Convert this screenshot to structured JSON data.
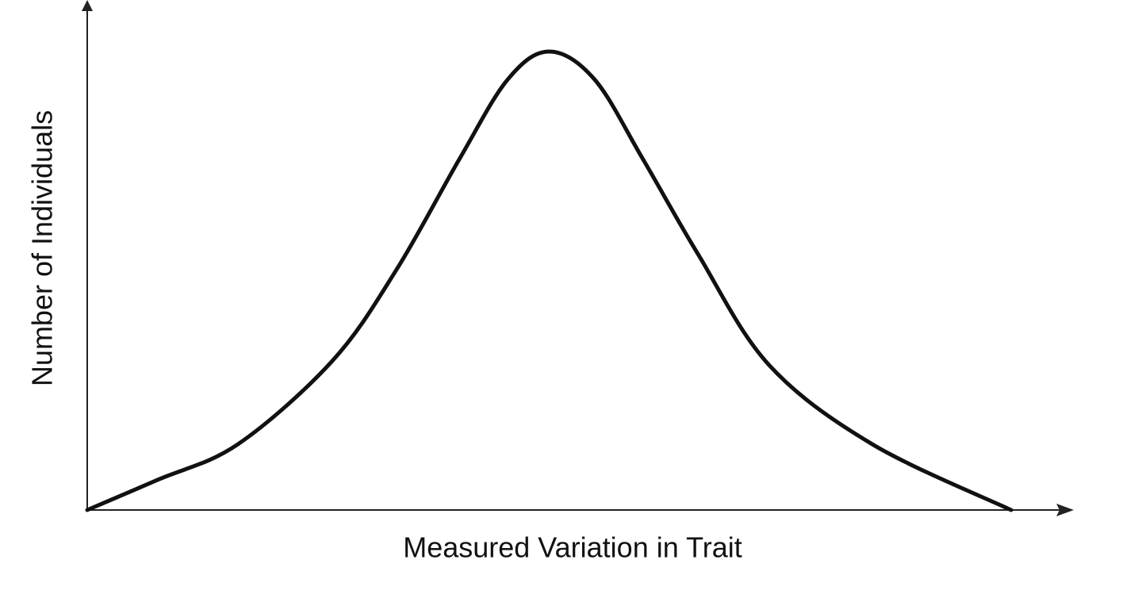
{
  "chart_data": {
    "type": "line",
    "x_label": "Measured Variation in Trait",
    "y_label": "Number of Individuals",
    "x": [
      0,
      7.2,
      15.3,
      24.9,
      31.4,
      37.8,
      42.7,
      46.9,
      51.5,
      56.4,
      62.0,
      69.2,
      79.7,
      93.8
    ],
    "series": [
      {
        "color": "#111111",
        "values": [
          0,
          6.0,
          13.0,
          29.5,
          47.5,
          69.4,
          85.1,
          90.6,
          85.1,
          69.4,
          50.6,
          28.7,
          13.0,
          0
        ]
      }
    ],
    "xlim": [
      0,
      100
    ],
    "ylim": [
      0,
      100
    ]
  }
}
